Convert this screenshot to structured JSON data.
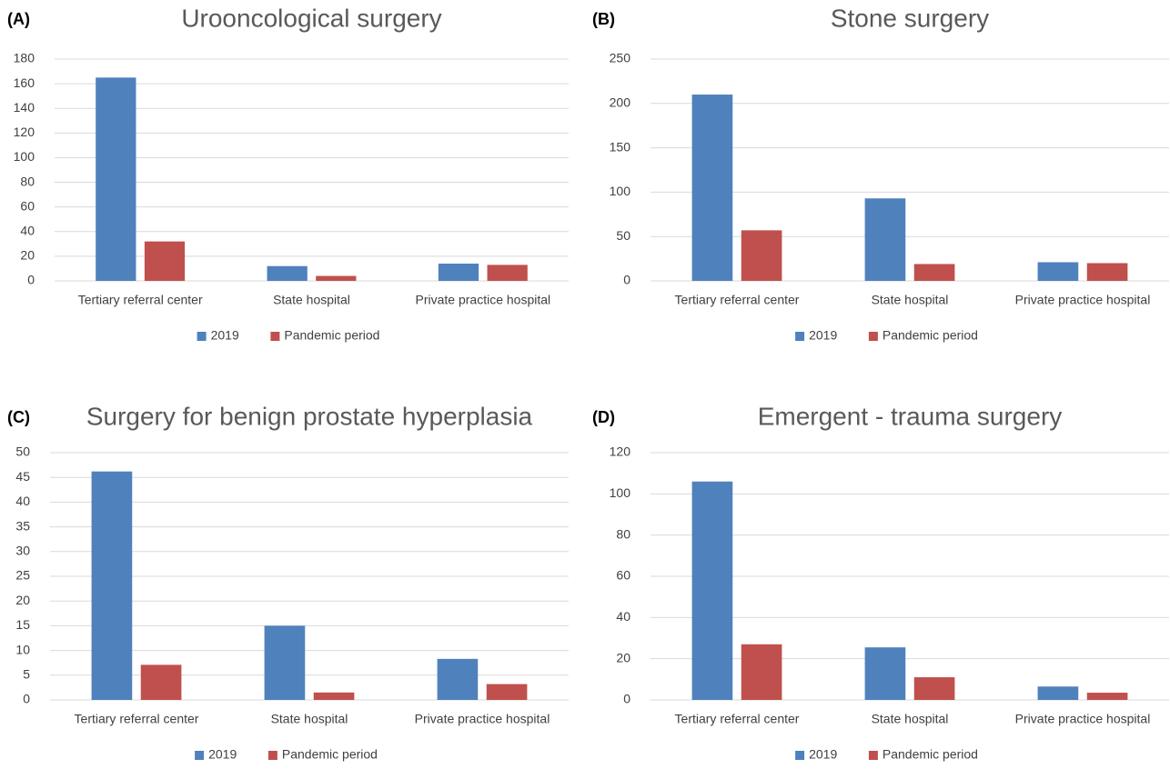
{
  "chart_data": [
    {
      "type": "bar",
      "panel": "(A)",
      "title": "Urooncological surgery",
      "categories": [
        "Tertiary referral center",
        "State hospital",
        "Private practice hospital"
      ],
      "series": [
        {
          "name": "2019",
          "color": "#4f81bd",
          "values": [
            165,
            12,
            14
          ]
        },
        {
          "name": "Pandemic period",
          "color": "#c0504d",
          "values": [
            32,
            4,
            13
          ]
        }
      ],
      "ylim": [
        0,
        180
      ],
      "yticks": [
        0,
        20,
        40,
        60,
        80,
        100,
        120,
        140,
        160,
        180
      ],
      "grid": true,
      "legend": "bottom"
    },
    {
      "type": "bar",
      "panel": "(B)",
      "title": "Stone surgery",
      "categories": [
        "Tertiary referral center",
        "State hospital",
        "Private practice hospital"
      ],
      "series": [
        {
          "name": "2019",
          "color": "#4f81bd",
          "values": [
            210,
            93,
            21
          ]
        },
        {
          "name": "Pandemic period",
          "color": "#c0504d",
          "values": [
            57,
            19,
            20
          ]
        }
      ],
      "ylim": [
        0,
        250
      ],
      "yticks": [
        0,
        50,
        100,
        150,
        200,
        250
      ],
      "grid": true,
      "legend": "bottom"
    },
    {
      "type": "bar",
      "panel": "(C)",
      "title": "Surgery for benign prostate hyperplasia",
      "categories": [
        "Tertiary referral center",
        "State hospital",
        "Private practice hospital"
      ],
      "series": [
        {
          "name": "2019",
          "color": "#4f81bd",
          "values": [
            46.2,
            15,
            8.3
          ]
        },
        {
          "name": "Pandemic period",
          "color": "#c0504d",
          "values": [
            7.1,
            1.5,
            3.2
          ]
        }
      ],
      "ylim": [
        0,
        50
      ],
      "yticks": [
        0,
        5,
        10,
        15,
        20,
        25,
        30,
        35,
        40,
        45,
        50
      ],
      "grid": true,
      "legend": "bottom"
    },
    {
      "type": "bar",
      "panel": "(D)",
      "title": "Emergent - trauma surgery",
      "categories": [
        "Tertiary referral center",
        "State hospital",
        "Private practice hospital"
      ],
      "series": [
        {
          "name": "2019",
          "color": "#4f81bd",
          "values": [
            106,
            25.5,
            6.5
          ]
        },
        {
          "name": "Pandemic period",
          "color": "#c0504d",
          "values": [
            27,
            11,
            3.5
          ]
        }
      ],
      "ylim": [
        0,
        120
      ],
      "yticks": [
        0,
        20,
        40,
        60,
        80,
        100,
        120
      ],
      "grid": true,
      "legend": "bottom"
    }
  ]
}
